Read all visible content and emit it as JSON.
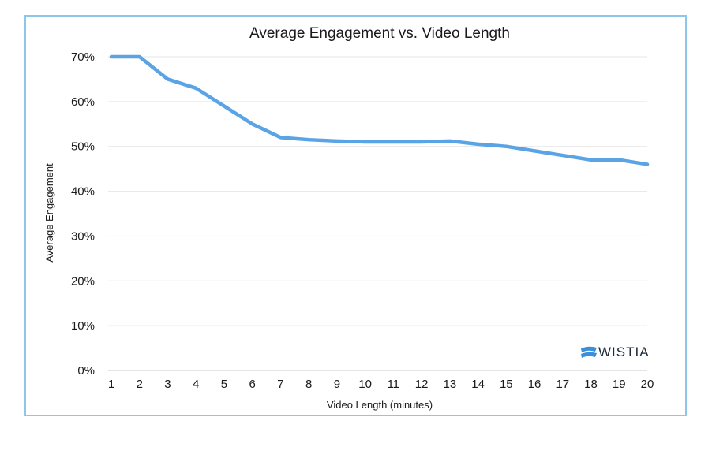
{
  "chart_data": {
    "type": "line",
    "title": "Average Engagement vs. Video Length",
    "xlabel": "Video Length (minutes)",
    "ylabel": "Average Engagement",
    "x": [
      1,
      2,
      3,
      4,
      5,
      6,
      7,
      8,
      9,
      10,
      11,
      12,
      13,
      14,
      15,
      16,
      17,
      18,
      19,
      20
    ],
    "series": [
      {
        "values": [
          70,
          70,
          65,
          63,
          59,
          55,
          52,
          51.5,
          51.2,
          51,
          51,
          51,
          51.2,
          50.5,
          50,
          49,
          48,
          47,
          47,
          46
        ]
      }
    ],
    "y_ticks": [
      "0%",
      "10%",
      "20%",
      "30%",
      "40%",
      "50%",
      "60%",
      "70%"
    ],
    "ylim": [
      0,
      70
    ],
    "xlim": [
      1,
      20
    ],
    "grid": true,
    "line_color": "#5aa4e6"
  },
  "brand": {
    "name": "WISTIA",
    "icon": "wistia-logo-icon",
    "color": "#3a8fd8"
  }
}
